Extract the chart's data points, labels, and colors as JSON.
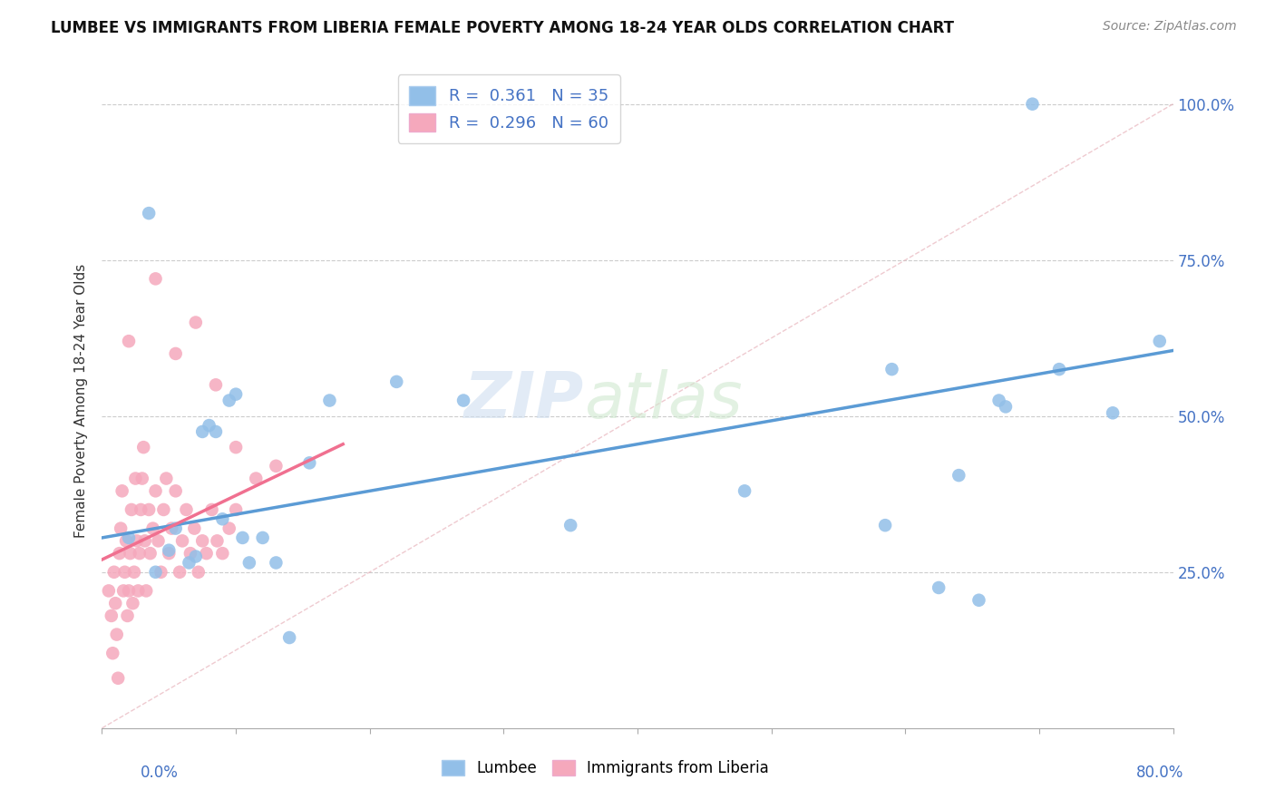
{
  "title": "LUMBEE VS IMMIGRANTS FROM LIBERIA FEMALE POVERTY AMONG 18-24 YEAR OLDS CORRELATION CHART",
  "source": "Source: ZipAtlas.com",
  "ylabel": "Female Poverty Among 18-24 Year Olds",
  "color_lumbee": "#92bfe8",
  "color_liberia": "#f5a8bc",
  "color_lumbee_line": "#5b9bd5",
  "color_liberia_line": "#f07090",
  "color_diag": "#f0b0b8",
  "watermark_zip": "ZIP",
  "watermark_atlas": "atlas",
  "xlim": [
    0.0,
    0.8
  ],
  "ylim": [
    0.0,
    1.05
  ],
  "yticks": [
    0.0,
    0.25,
    0.5,
    0.75,
    1.0
  ],
  "ytick_labels": [
    "",
    "25.0%",
    "50.0%",
    "75.0%",
    "100.0%"
  ],
  "lumbee_x": [
    0.02,
    0.035,
    0.04,
    0.05,
    0.055,
    0.065,
    0.07,
    0.075,
    0.08,
    0.085,
    0.09,
    0.095,
    0.1,
    0.105,
    0.11,
    0.12,
    0.13,
    0.14,
    0.155,
    0.17,
    0.22,
    0.27,
    0.35,
    0.48,
    0.585,
    0.59,
    0.625,
    0.64,
    0.655,
    0.67,
    0.675,
    0.695,
    0.715,
    0.755,
    0.79
  ],
  "lumbee_y": [
    0.305,
    0.825,
    0.25,
    0.285,
    0.32,
    0.265,
    0.275,
    0.475,
    0.485,
    0.475,
    0.335,
    0.525,
    0.535,
    0.305,
    0.265,
    0.305,
    0.265,
    0.145,
    0.425,
    0.525,
    0.555,
    0.525,
    0.325,
    0.38,
    0.325,
    0.575,
    0.225,
    0.405,
    0.205,
    0.525,
    0.515,
    1.0,
    0.575,
    0.505,
    0.62
  ],
  "liberia_x": [
    0.005,
    0.007,
    0.009,
    0.01,
    0.011,
    0.013,
    0.014,
    0.015,
    0.016,
    0.017,
    0.018,
    0.019,
    0.02,
    0.021,
    0.022,
    0.023,
    0.024,
    0.025,
    0.026,
    0.027,
    0.028,
    0.029,
    0.03,
    0.031,
    0.032,
    0.033,
    0.035,
    0.036,
    0.038,
    0.04,
    0.042,
    0.044,
    0.046,
    0.048,
    0.05,
    0.052,
    0.055,
    0.058,
    0.06,
    0.063,
    0.066,
    0.069,
    0.072,
    0.075,
    0.078,
    0.082,
    0.086,
    0.09,
    0.095,
    0.1,
    0.008,
    0.012,
    0.02,
    0.04,
    0.055,
    0.07,
    0.085,
    0.1,
    0.115,
    0.13
  ],
  "liberia_y": [
    0.22,
    0.18,
    0.25,
    0.2,
    0.15,
    0.28,
    0.32,
    0.38,
    0.22,
    0.25,
    0.3,
    0.18,
    0.22,
    0.28,
    0.35,
    0.2,
    0.25,
    0.4,
    0.3,
    0.22,
    0.28,
    0.35,
    0.4,
    0.45,
    0.3,
    0.22,
    0.35,
    0.28,
    0.32,
    0.38,
    0.3,
    0.25,
    0.35,
    0.4,
    0.28,
    0.32,
    0.38,
    0.25,
    0.3,
    0.35,
    0.28,
    0.32,
    0.25,
    0.3,
    0.28,
    0.35,
    0.3,
    0.28,
    0.32,
    0.35,
    0.12,
    0.08,
    0.62,
    0.72,
    0.6,
    0.65,
    0.55,
    0.45,
    0.4,
    0.42
  ],
  "lumbee_trend_x": [
    0.0,
    0.8
  ],
  "lumbee_trend_y": [
    0.305,
    0.605
  ],
  "liberia_trend_x": [
    0.0,
    0.18
  ],
  "liberia_trend_y": [
    0.27,
    0.455
  ]
}
